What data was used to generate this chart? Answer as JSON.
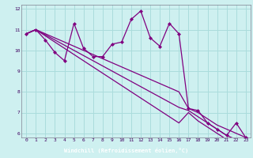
{
  "xlabel": "Windchill (Refroidissement éolien,°C)",
  "bg_color": "#cef0f0",
  "xlabel_bg": "#6060c0",
  "xlabel_fg": "#ffffff",
  "grid_color": "#aadcdc",
  "line_color": "#800080",
  "marker_color": "#800080",
  "xlim": [
    -0.5,
    23.5
  ],
  "ylim": [
    5.8,
    12.2
  ],
  "yticks": [
    6,
    7,
    8,
    9,
    10,
    11,
    12
  ],
  "xticks": [
    0,
    1,
    2,
    3,
    4,
    5,
    6,
    7,
    8,
    9,
    10,
    11,
    12,
    13,
    14,
    15,
    16,
    17,
    18,
    19,
    20,
    21,
    22,
    23
  ],
  "series": [
    {
      "x": [
        0,
        1,
        2,
        3,
        4,
        5,
        6,
        7,
        8,
        9,
        10,
        11,
        12,
        13,
        14,
        15,
        16,
        17,
        18,
        19,
        20,
        21,
        22,
        23
      ],
      "y": [
        10.8,
        11.0,
        10.5,
        9.9,
        9.5,
        11.3,
        10.1,
        9.7,
        9.7,
        10.3,
        10.4,
        11.5,
        11.9,
        10.6,
        10.2,
        11.3,
        10.8,
        7.2,
        7.1,
        6.5,
        6.2,
        5.9,
        6.5,
        5.8
      ],
      "marker": true
    },
    {
      "x": [
        0,
        1,
        2,
        3,
        4,
        5,
        6,
        7,
        8,
        9,
        10,
        11,
        12,
        13,
        14,
        15,
        16,
        17,
        18,
        19,
        20,
        21,
        22,
        23
      ],
      "y": [
        10.8,
        11.0,
        10.8,
        10.6,
        10.4,
        10.2,
        10.0,
        9.8,
        9.6,
        9.4,
        9.2,
        9.0,
        8.8,
        8.6,
        8.4,
        8.2,
        8.0,
        7.2,
        7.0,
        6.7,
        6.4,
        6.2,
        6.0,
        5.8
      ],
      "marker": false
    },
    {
      "x": [
        0,
        1,
        2,
        3,
        4,
        5,
        6,
        7,
        8,
        9,
        10,
        11,
        12,
        13,
        14,
        15,
        16,
        17,
        18,
        19,
        20,
        21,
        22,
        23
      ],
      "y": [
        10.8,
        11.0,
        10.75,
        10.5,
        10.25,
        10.0,
        9.75,
        9.5,
        9.25,
        9.0,
        8.75,
        8.5,
        8.25,
        8.0,
        7.75,
        7.5,
        7.25,
        7.1,
        6.8,
        6.5,
        6.2,
        5.9,
        5.7,
        5.6
      ],
      "marker": false
    },
    {
      "x": [
        0,
        1,
        2,
        3,
        4,
        5,
        6,
        7,
        8,
        9,
        10,
        11,
        12,
        13,
        14,
        15,
        16,
        17,
        18,
        19,
        20,
        21,
        22,
        23
      ],
      "y": [
        10.8,
        11.0,
        10.7,
        10.4,
        10.1,
        9.8,
        9.5,
        9.2,
        8.9,
        8.6,
        8.3,
        8.0,
        7.7,
        7.4,
        7.1,
        6.8,
        6.5,
        7.0,
        6.6,
        6.3,
        6.0,
        5.7,
        5.5,
        5.4
      ],
      "marker": false
    }
  ]
}
